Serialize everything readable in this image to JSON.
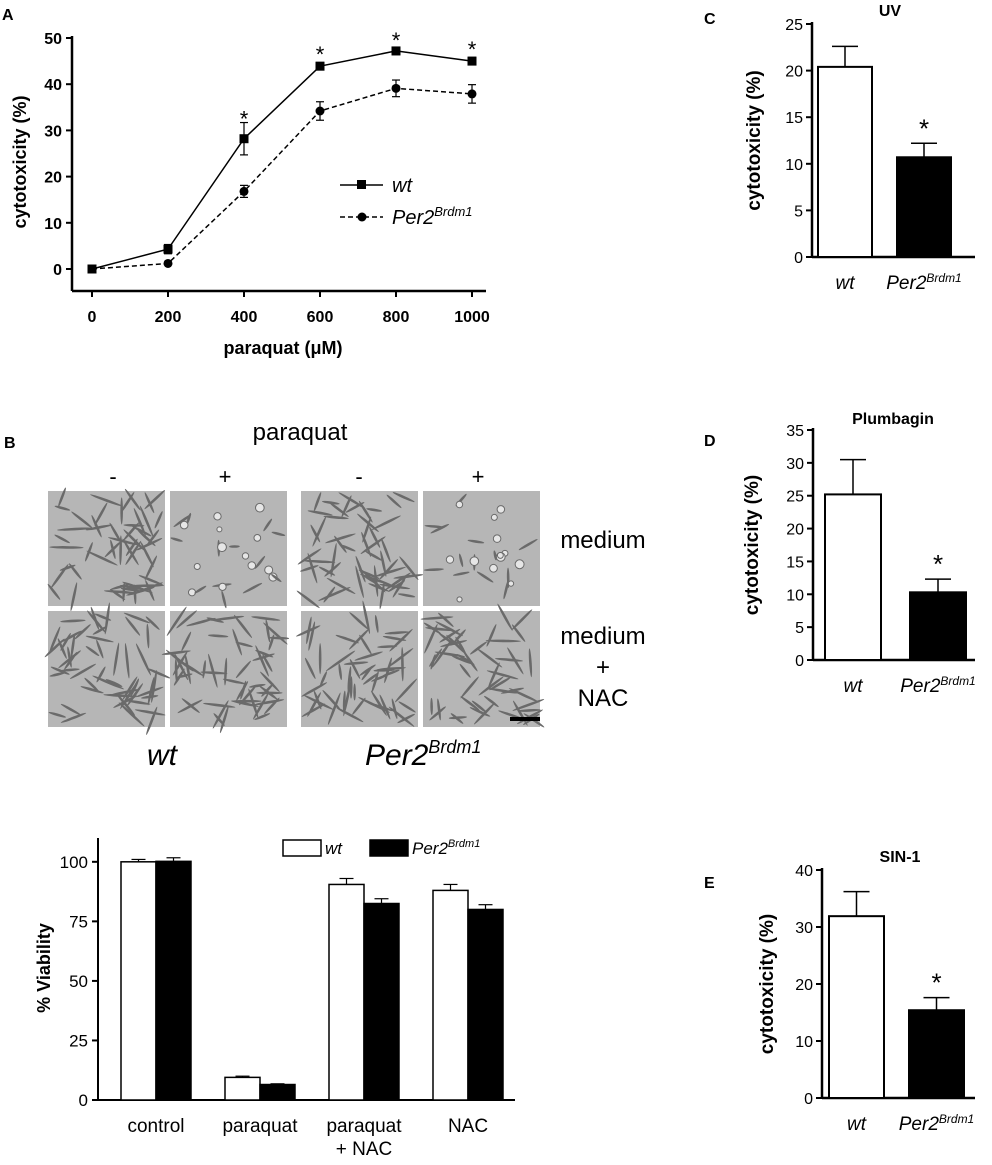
{
  "panels": {
    "A": "A",
    "B": "B",
    "C": "C",
    "D": "D",
    "E": "E"
  },
  "colors": {
    "wt": "#ffffff",
    "per2": "#000000",
    "axis": "#000000",
    "micro_bg": "#b6b6b6",
    "micro_cell": "#6a6a6a"
  },
  "panel_b": {
    "paraquat_label": "paraquat",
    "minus": "-",
    "plus": "+",
    "row_medium": "medium",
    "row_nac_line1": "medium",
    "row_nac_line2": "+",
    "row_nac_line3": "NAC",
    "genotype_wt": "wt",
    "genotype_per2_base": "Per2",
    "genotype_per2_sup": "Brdm1",
    "micrographs": [
      {
        "genotype": "wt",
        "paraquat": "-",
        "medium": "medium",
        "icon": "micrograph-dense-cells"
      },
      {
        "genotype": "wt",
        "paraquat": "+",
        "medium": "medium",
        "icon": "micrograph-sparse-cells"
      },
      {
        "genotype": "Per2Brdm1",
        "paraquat": "-",
        "medium": "medium",
        "icon": "micrograph-dense-cells"
      },
      {
        "genotype": "Per2Brdm1",
        "paraquat": "+",
        "medium": "medium",
        "icon": "micrograph-sparse-cells"
      },
      {
        "genotype": "wt",
        "paraquat": "-",
        "medium": "medium + NAC",
        "icon": "micrograph-dense-cells"
      },
      {
        "genotype": "wt",
        "paraquat": "+",
        "medium": "medium + NAC",
        "icon": "micrograph-dense-cells"
      },
      {
        "genotype": "Per2Brdm1",
        "paraquat": "-",
        "medium": "medium + NAC",
        "icon": "micrograph-dense-cells"
      },
      {
        "genotype": "Per2Brdm1",
        "paraquat": "+",
        "medium": "medium + NAC",
        "icon": "micrograph-dense-cells"
      }
    ]
  },
  "chart_data": [
    {
      "id": "A",
      "type": "line",
      "title": "",
      "xlabel_prefix": "paraquat (",
      "xlabel_unit": "μM",
      "xlabel_suffix": ")",
      "ylabel": "cytotoxicity (%)",
      "x": [
        0,
        200,
        400,
        600,
        800,
        1000
      ],
      "xticks": [
        "0",
        "200",
        "400",
        "600",
        "800",
        "1000"
      ],
      "yticks": [
        "0",
        "10",
        "20",
        "30",
        "40",
        "50"
      ],
      "xlim": [
        0,
        1000
      ],
      "ylim": [
        0,
        50
      ],
      "legend_position": "right",
      "series": [
        {
          "name": "wt",
          "values": [
            0,
            4.3,
            28.2,
            43.9,
            47.2,
            45.0
          ],
          "err": [
            0.3,
            1.0,
            3.5,
            0.8,
            0.8,
            0.8
          ],
          "marker": "square",
          "line": "solid"
        },
        {
          "name_base": "Per2",
          "name_sup": "Brdm1",
          "values": [
            0,
            1.2,
            16.8,
            34.2,
            39.1,
            37.9
          ],
          "err": [
            0.3,
            0.3,
            1.3,
            2.0,
            1.8,
            2.0
          ],
          "marker": "circle",
          "line": "dashed"
        }
      ],
      "annotations": [
        {
          "x": 400,
          "y": 33,
          "text": "*"
        },
        {
          "x": 600,
          "y": 47,
          "text": "*"
        },
        {
          "x": 800,
          "y": 50,
          "text": "*"
        },
        {
          "x": 1000,
          "y": 48,
          "text": "*"
        }
      ]
    },
    {
      "id": "B-viability",
      "type": "bar",
      "title": "",
      "ylabel": "% Viability",
      "categories": [
        "control",
        "paraquat",
        "paraquat\n+ NAC",
        "NAC"
      ],
      "yticks": [
        "0",
        "25",
        "50",
        "75",
        "100"
      ],
      "ylim": [
        0,
        110
      ],
      "legend_position": "top-right",
      "series": [
        {
          "name": "wt",
          "values": [
            100.0,
            9.5,
            90.5,
            88.0
          ],
          "err": [
            1.0,
            0.5,
            2.5,
            2.5
          ],
          "fill": "white"
        },
        {
          "name_base": "Per2",
          "name_sup": "Brdm1",
          "values": [
            100.2,
            6.5,
            82.5,
            80.0
          ],
          "err": [
            1.5,
            0.3,
            2.0,
            2.0
          ],
          "fill": "black"
        }
      ]
    },
    {
      "id": "C",
      "type": "bar",
      "title": "UV",
      "ylabel": "cytotoxicity (%)",
      "categories": [
        "wt",
        "Per2Brdm1"
      ],
      "yticks": [
        "0",
        "5",
        "10",
        "15",
        "20",
        "25"
      ],
      "ylim": [
        0,
        25
      ],
      "values": [
        20.4,
        10.7
      ],
      "err": [
        2.2,
        1.5
      ],
      "annotations": [
        {
          "category": "Per2Brdm1",
          "text": "*"
        }
      ]
    },
    {
      "id": "D",
      "type": "bar",
      "title": "Plumbagin",
      "ylabel": "cytotoxicity (%)",
      "categories": [
        "wt",
        "Per2Brdm1"
      ],
      "yticks": [
        "0",
        "5",
        "10",
        "15",
        "20",
        "25",
        "30",
        "35"
      ],
      "ylim": [
        0,
        35
      ],
      "values": [
        25.2,
        10.3
      ],
      "err": [
        5.3,
        2.0
      ],
      "annotations": [
        {
          "category": "Per2Brdm1",
          "text": "*"
        }
      ]
    },
    {
      "id": "E",
      "type": "bar",
      "title": "SIN-1",
      "ylabel": "cytotoxicity (%)",
      "categories": [
        "wt",
        "Per2Brdm1"
      ],
      "yticks": [
        "0",
        "10",
        "20",
        "30",
        "40"
      ],
      "ylim": [
        0,
        40
      ],
      "values": [
        31.9,
        15.4
      ],
      "err": [
        4.3,
        2.2
      ],
      "annotations": [
        {
          "category": "Per2Brdm1",
          "text": "*"
        }
      ]
    }
  ]
}
